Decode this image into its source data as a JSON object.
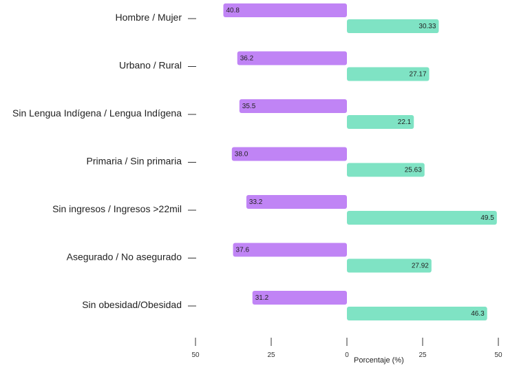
{
  "chart_data": {
    "type": "bar",
    "orientation": "horizontal-diverging",
    "categories": [
      "Hombre / Mujer",
      "Urbano / Rural",
      "Sin Lengua Indígena /  Lengua Indígena",
      "Primaria / Sin primaria",
      "Sin ingresos / Ingresos >22mil",
      "Asegurado / No asegurado",
      "Sin obesidad/Obesidad"
    ],
    "series": [
      {
        "values": [
          40.8,
          36.2,
          35.5,
          38.0,
          33.2,
          37.6,
          31.2
        ],
        "labels": [
          "40.8",
          "36.2",
          "35.5",
          "38.0",
          "33.2",
          "37.6",
          "31.2"
        ],
        "color": "#c084f5",
        "side": "left"
      },
      {
        "values": [
          30.33,
          27.17,
          22.1,
          25.63,
          49.5,
          27.92,
          46.3
        ],
        "labels": [
          "30.33",
          "27.17",
          "22.1",
          "25.63",
          "49.5",
          "27.92",
          "46.3"
        ],
        "color": "#7fe3c4",
        "side": "right"
      }
    ],
    "xlabel": "Porcentaje (%)",
    "xlim": [
      -50,
      50
    ],
    "xticks": [
      -50,
      -25,
      0,
      25,
      50
    ],
    "xtick_labels": [
      "50",
      "25",
      "0",
      "25",
      "50"
    ]
  }
}
